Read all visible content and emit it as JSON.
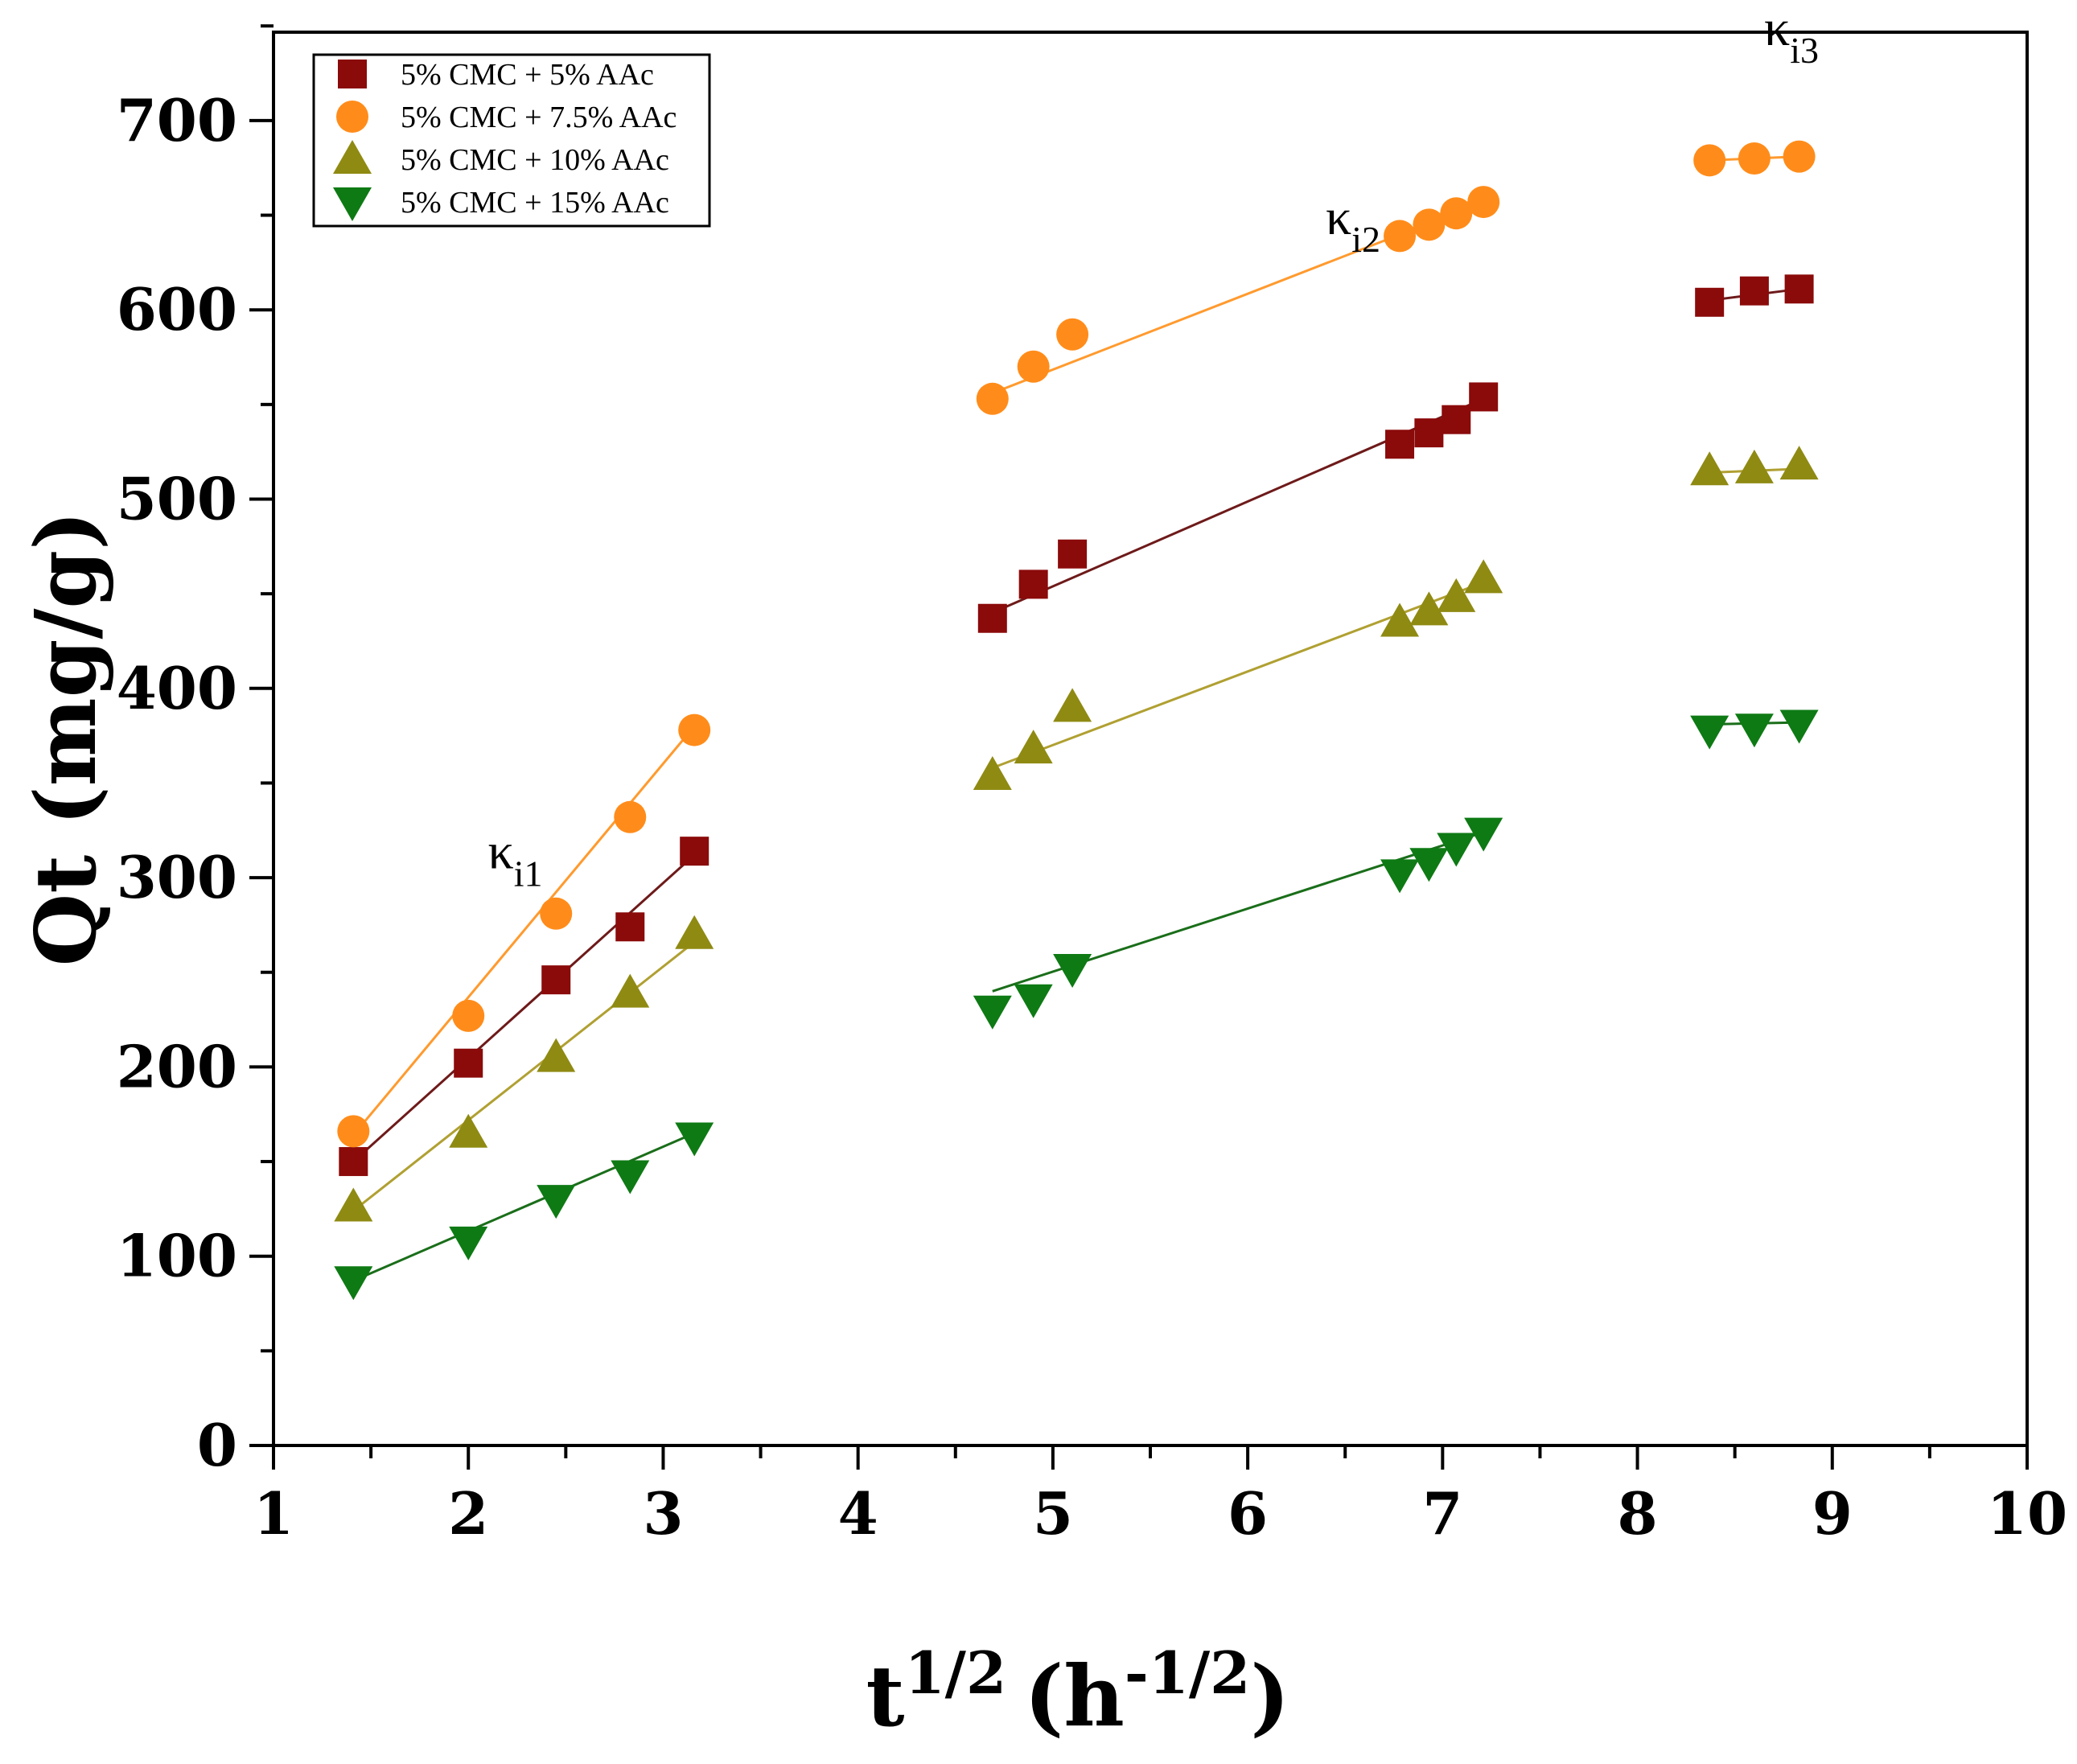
{
  "chart_data": {
    "type": "scatter",
    "title": "",
    "xlabel_main": "t",
    "xlabel_sup1": "1/2",
    "xlabel_paren_open": "(h",
    "xlabel_sup2": "-1/2",
    "xlabel_paren_close": ")",
    "ylabel": "Qt (mg/g)",
    "xlim": [
      1,
      10
    ],
    "ylim": [
      0,
      750
    ],
    "xticks": [
      "1",
      "2",
      "3",
      "4",
      "5",
      "6",
      "7",
      "8",
      "9",
      "10"
    ],
    "yticks": [
      "0",
      "100",
      "200",
      "300",
      "400",
      "500",
      "600",
      "700"
    ],
    "legend_position": "top-left",
    "annotations": [
      {
        "symbol": "κ",
        "sub": "i1",
        "x": 2.1,
        "y": 305
      },
      {
        "symbol": "κ",
        "sub": "i2",
        "x": 6.4,
        "y": 640
      },
      {
        "symbol": "κ",
        "sub": "i3",
        "x": 8.65,
        "y": 740
      }
    ],
    "series": [
      {
        "name": "5% CMC + 5% AAc",
        "marker": "square",
        "color": "#8b0a0a",
        "line_color": "#6e1a1a",
        "x": [
          1.41,
          2.0,
          2.45,
          2.83,
          3.16,
          4.69,
          4.9,
          5.1,
          6.78,
          6.93,
          7.07,
          7.21,
          8.37,
          8.6,
          8.83
        ],
        "y": [
          150,
          202,
          246,
          274,
          314,
          437,
          455,
          471,
          529,
          535,
          542,
          554,
          604,
          610,
          611
        ],
        "fits": [
          [
            1.41,
            150,
            3.16,
            312
          ],
          [
            4.69,
            440,
            7.21,
            553
          ],
          [
            8.37,
            605,
            8.83,
            611
          ]
        ]
      },
      {
        "name": "5% CMC + 7.5% AAc",
        "marker": "circle",
        "color": "#ff8c1a",
        "line_color": "#ff9a2e",
        "x": [
          1.41,
          2.0,
          2.45,
          2.83,
          3.16,
          4.69,
          4.9,
          5.1,
          6.78,
          6.93,
          7.07,
          7.21,
          8.37,
          8.6,
          8.83
        ],
        "y": [
          166,
          227,
          281,
          332,
          378,
          553,
          570,
          587,
          639,
          645,
          651,
          657,
          679,
          680,
          681
        ],
        "fits": [
          [
            1.41,
            164,
            3.16,
            380
          ],
          [
            4.69,
            556,
            7.21,
            657
          ],
          [
            8.37,
            679,
            8.83,
            681
          ]
        ]
      },
      {
        "name": "5% CMC + 10% AAc",
        "marker": "triangle-up",
        "color": "#8f8a12",
        "line_color": "#b0a032",
        "x": [
          1.41,
          2.0,
          2.45,
          2.83,
          3.16,
          4.69,
          4.9,
          5.1,
          6.78,
          6.93,
          7.07,
          7.21,
          8.37,
          8.6,
          8.83
        ],
        "y": [
          126,
          165,
          205,
          239,
          270,
          354,
          368,
          390,
          435,
          441,
          448,
          458,
          515,
          516,
          518
        ],
        "fits": [
          [
            1.41,
            124,
            3.16,
            266
          ],
          [
            4.69,
            358,
            7.21,
            456
          ],
          [
            8.37,
            514,
            8.83,
            516
          ]
        ]
      },
      {
        "name": "5% CMC + 15% AAc",
        "marker": "triangle-down",
        "color": "#0e7a14",
        "line_color": "#1a6e1a",
        "x": [
          1.41,
          2.0,
          2.45,
          2.83,
          3.16,
          4.69,
          4.9,
          5.1,
          6.78,
          6.93,
          7.07,
          7.21,
          8.37,
          8.6,
          8.83
        ],
        "y": [
          87,
          108,
          130,
          143,
          163,
          230,
          236,
          252,
          302,
          308,
          316,
          324,
          378,
          379,
          381
        ],
        "fits": [
          [
            1.41,
            87,
            3.16,
            165
          ],
          [
            4.69,
            240,
            7.21,
            324
          ],
          [
            8.37,
            381,
            8.83,
            382
          ]
        ]
      }
    ]
  }
}
